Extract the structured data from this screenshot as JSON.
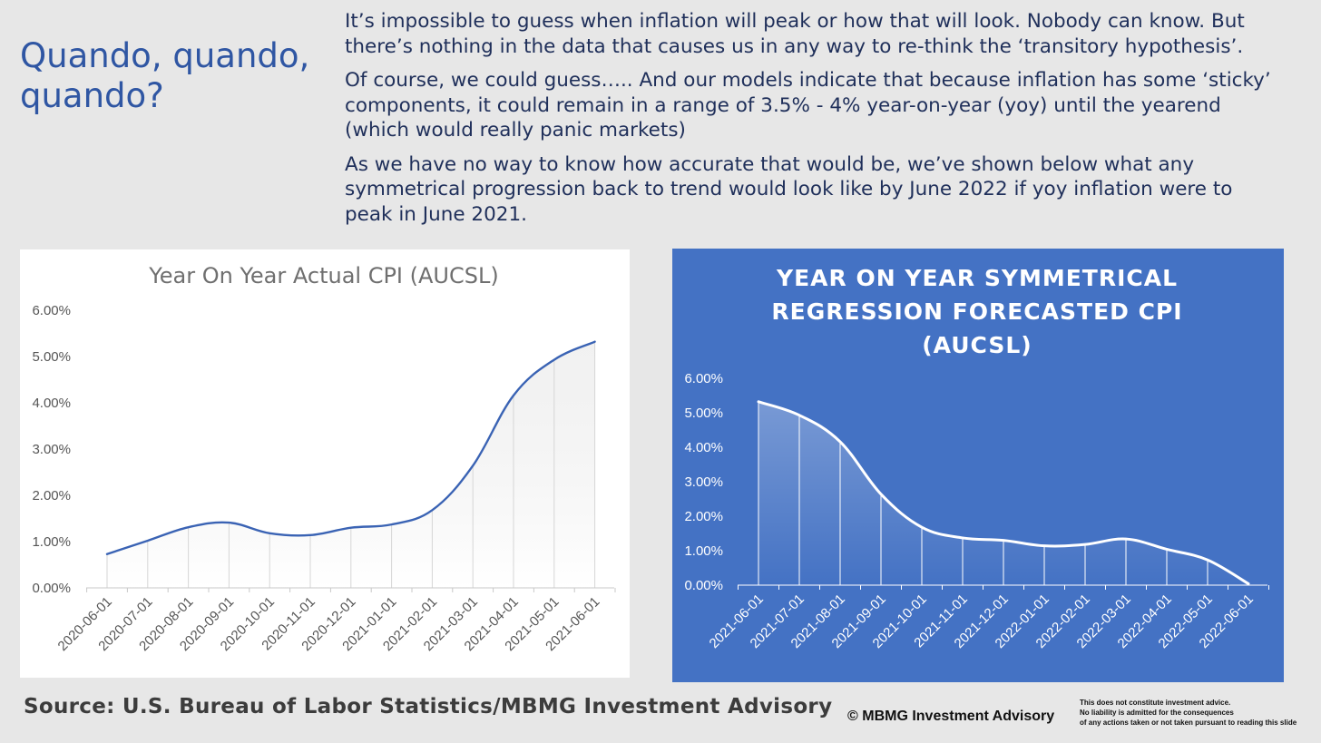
{
  "slide": {
    "title": "Quando, quando, quando?",
    "paragraphs": [
      "It’s impossible to guess when inflation will peak or how that will look. Nobody can know. But there’s nothing in the data that causes us in any way to re-think the ‘transitory hypothesis’.",
      "Of course, we could guess….. And our models indicate that because inflation has some ‘sticky’ components, it could remain in a range of 3.5% - 4% year-on-year (yoy) until the yearend (which would really panic markets)",
      "As we have no way to know how accurate that would be, we’ve shown below what any symmetrical progression back to trend would look like by June 2022 if yoy inflation were to peak in June 2021."
    ],
    "source": "Source: U.S. Bureau of Labor Statistics/MBMG Investment Advisory",
    "copyright": "© MBMG Investment Advisory",
    "disclaimer": [
      "This does not constitute investment advice.",
      "No liability is admitted for the consequences",
      "of any actions taken or not taken pursuant to reading this slide"
    ]
  },
  "colors": {
    "title_blue": "#2f56a3",
    "left_line": "#3a63b4",
    "right_panel_bg": "#4472c4",
    "right_line": "#ffffff"
  },
  "chart_data": [
    {
      "type": "area",
      "title": "Year On Year Actual CPI (AUCSL)",
      "categories": [
        "2020-06-01",
        "2020-07-01",
        "2020-08-01",
        "2020-09-01",
        "2020-10-01",
        "2020-11-01",
        "2020-12-01",
        "2021-01-01",
        "2021-02-01",
        "2021-03-01",
        "2021-04-01",
        "2021-05-01",
        "2021-06-01"
      ],
      "values": [
        0.73,
        1.02,
        1.31,
        1.41,
        1.18,
        1.14,
        1.3,
        1.37,
        1.68,
        2.64,
        4.16,
        4.93,
        5.32
      ],
      "ylim": [
        0,
        6
      ],
      "yticks": [
        "0.00%",
        "1.00%",
        "2.00%",
        "3.00%",
        "4.00%",
        "5.00%",
        "6.00%"
      ],
      "grid": false,
      "legend": "none"
    },
    {
      "type": "area",
      "title": "YEAR ON YEAR SYMMETRICAL REGRESSION FORECASTED CPI (AUCSL)",
      "title_lines": [
        "YEAR ON YEAR SYMMETRICAL",
        "REGRESSION FORECASTED CPI",
        "(AUCSL)"
      ],
      "categories": [
        "2021-06-01",
        "2021-07-01",
        "2021-08-01",
        "2021-09-01",
        "2021-10-01",
        "2021-11-01",
        "2021-12-01",
        "2022-01-01",
        "2022-02-01",
        "2022-03-01",
        "2022-04-01",
        "2022-05-01",
        "2022-06-01"
      ],
      "values": [
        5.32,
        4.93,
        4.16,
        2.64,
        1.68,
        1.37,
        1.3,
        1.14,
        1.18,
        1.34,
        1.04,
        0.73,
        0.04
      ],
      "ylim": [
        0,
        6
      ],
      "yticks": [
        "0.00%",
        "1.00%",
        "2.00%",
        "3.00%",
        "4.00%",
        "5.00%",
        "6.00%"
      ],
      "grid": false,
      "legend": "none"
    }
  ]
}
